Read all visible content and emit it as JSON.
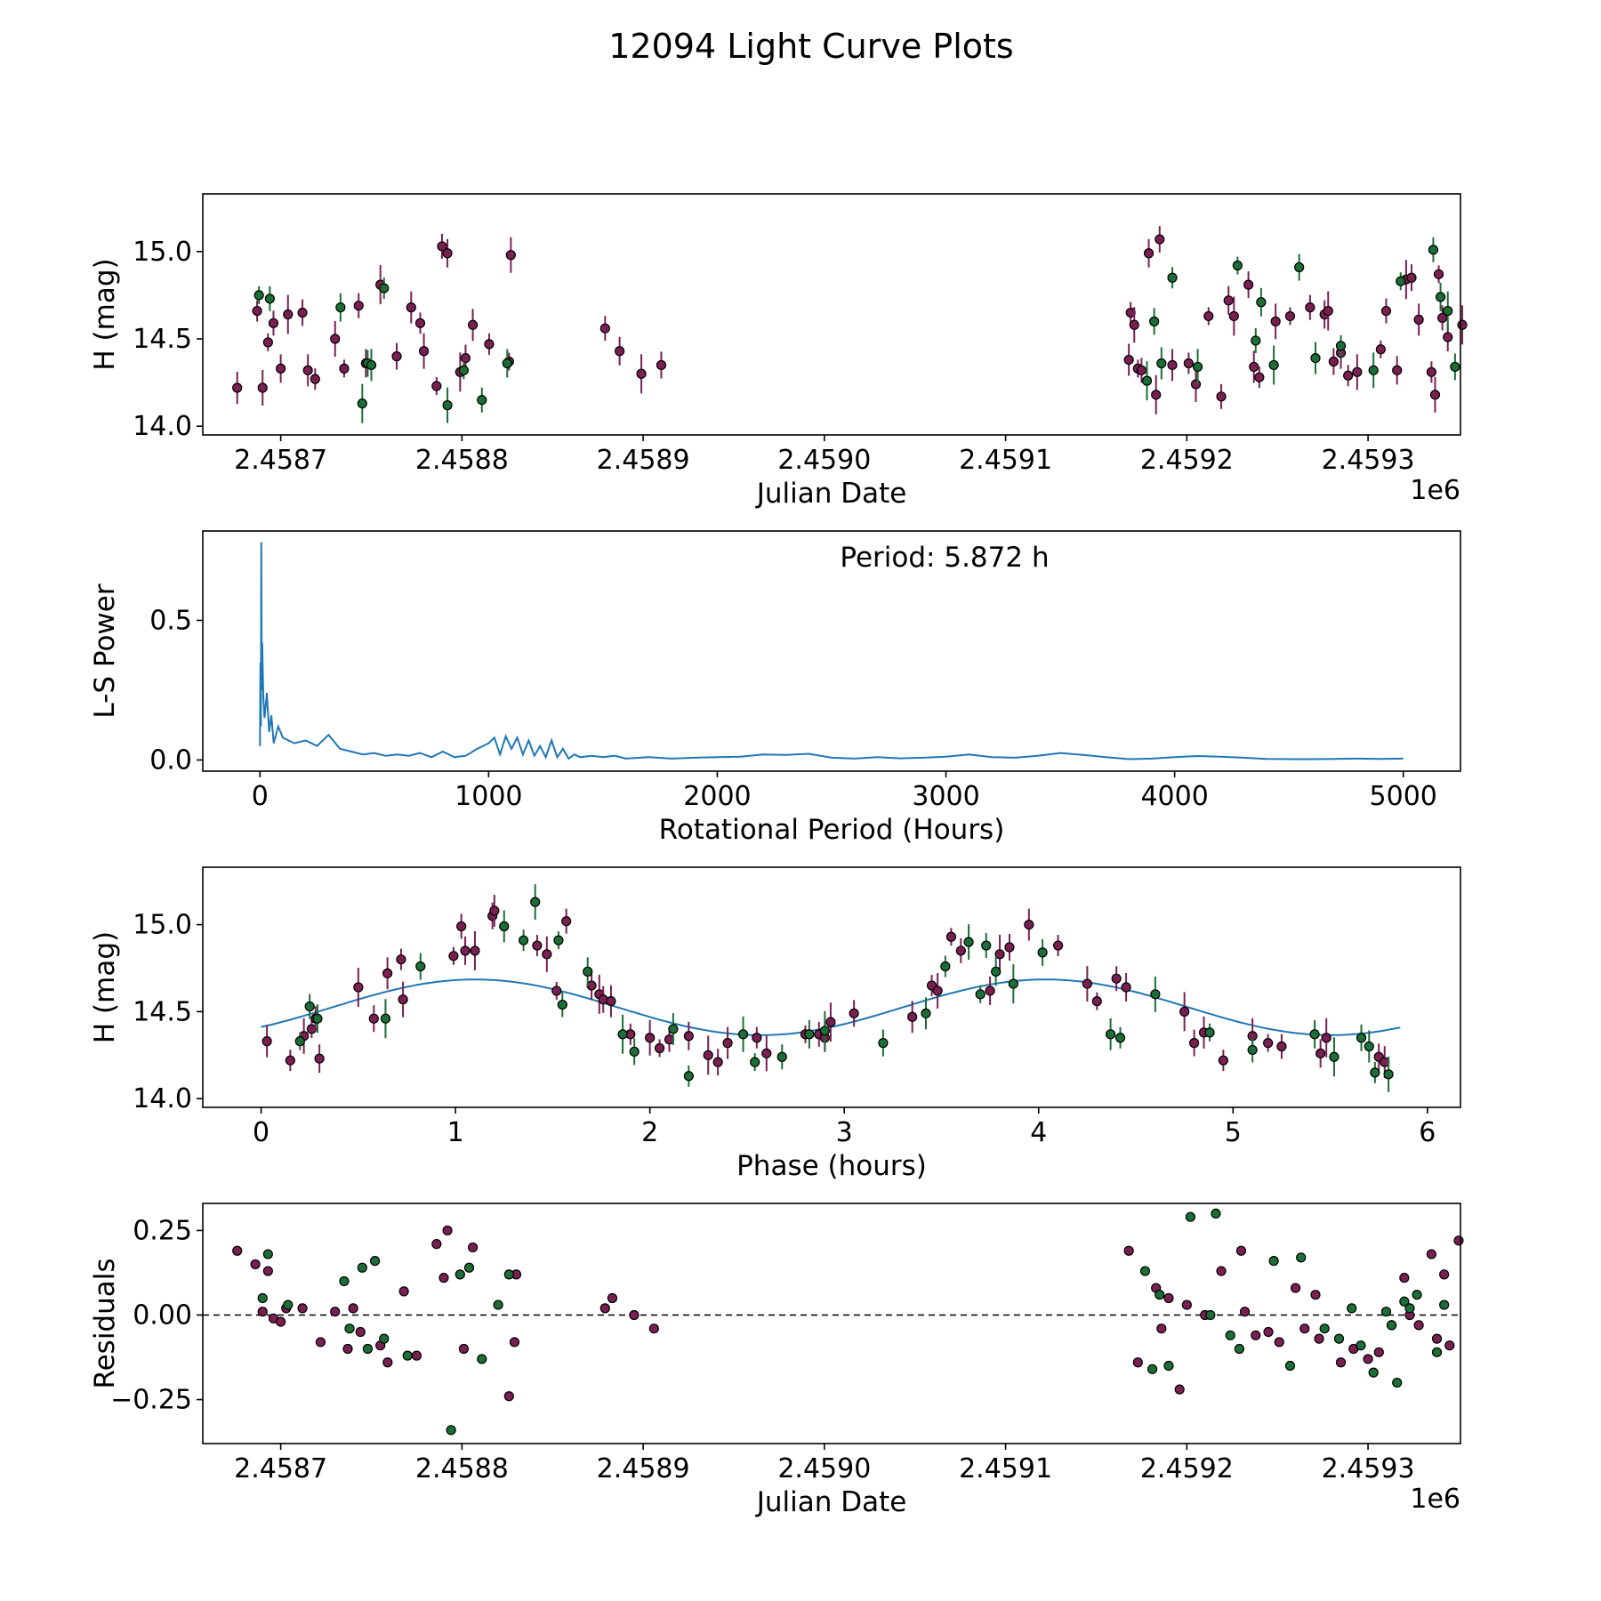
{
  "title": "12094 Light Curve Plots",
  "colors": {
    "filter_a": "#7b1f52",
    "filter_b": "#1b6e35",
    "periodogram": "#1f77b4",
    "fit": "#1f77b4"
  },
  "chart_data": [
    {
      "type": "scatter",
      "name": "light-curve",
      "xlabel": "Julian Date",
      "ylabel": "H (mag)",
      "x_offset_text": "1e6",
      "xlim": [
        2458657,
        2459351
      ],
      "ylim": [
        13.95,
        15.33
      ],
      "xticks": [
        2458700,
        2458800,
        2458900,
        2459000,
        2459100,
        2459200,
        2459300
      ],
      "xtick_labels": [
        "2.4587",
        "2.4588",
        "2.4589",
        "2.4590",
        "2.4591",
        "2.4592",
        "2.4593"
      ],
      "yticks": [
        14.0,
        14.5,
        15.0
      ],
      "ytick_labels": [
        "14.0",
        "14.5",
        "15.0"
      ],
      "series": [
        {
          "name": "filter A",
          "color": "#7b1f52",
          "x": [
            2458676,
            2458687,
            2458690,
            2458693,
            2458696,
            2458700,
            2458704,
            2458712,
            2458715,
            2458719,
            2458730,
            2458735,
            2458743,
            2458747,
            2458755,
            2458764,
            2458772,
            2458777,
            2458779,
            2458786,
            2458789,
            2458792,
            2458799,
            2458802,
            2458806,
            2458815,
            2458827,
            2458826,
            2458879,
            2458887,
            2458899,
            2458910,
            2459168,
            2459169,
            2459171,
            2459173,
            2459175,
            2459179,
            2459183,
            2459185,
            2459192,
            2459201,
            2459205,
            2459212,
            2459219,
            2459223,
            2459226,
            2459234,
            2459237,
            2459240,
            2459249,
            2459257,
            2459268,
            2459276,
            2459278,
            2459281,
            2459285,
            2459289,
            2459294,
            2459307,
            2459310,
            2459316,
            2459321,
            2459324,
            2459328,
            2459335,
            2459337,
            2459339,
            2459341,
            2459344,
            2459352
          ],
          "y": [
            14.22,
            14.66,
            14.22,
            14.48,
            14.59,
            14.33,
            14.64,
            14.65,
            14.32,
            14.27,
            14.5,
            14.33,
            14.69,
            14.36,
            14.81,
            14.4,
            14.68,
            14.59,
            14.43,
            14.23,
            15.03,
            14.99,
            14.31,
            14.39,
            14.58,
            14.47,
            14.98,
            14.37,
            14.56,
            14.43,
            14.3,
            14.35,
            14.38,
            14.65,
            14.58,
            14.33,
            14.32,
            14.99,
            14.18,
            15.07,
            14.35,
            14.36,
            14.24,
            14.63,
            14.17,
            14.72,
            14.63,
            14.81,
            14.34,
            14.28,
            14.6,
            14.63,
            14.68,
            14.64,
            14.66,
            14.37,
            14.42,
            14.29,
            14.31,
            14.44,
            14.66,
            14.32,
            14.84,
            14.85,
            14.61,
            14.31,
            14.18,
            14.87,
            14.62,
            14.51,
            14.58
          ]
        },
        {
          "name": "filter B",
          "color": "#1b6e35",
          "x": [
            2458688,
            2458694,
            2458733,
            2458745,
            2458748,
            2458750,
            2458757,
            2458792,
            2458801,
            2458811,
            2458825,
            2459178,
            2459182,
            2459186,
            2459192,
            2459206,
            2459228,
            2459238,
            2459241,
            2459248,
            2459262,
            2459271,
            2459285,
            2459303,
            2459318,
            2459336,
            2459340,
            2459344,
            2459348
          ],
          "y": [
            14.75,
            14.73,
            14.68,
            14.13,
            14.36,
            14.35,
            14.79,
            14.12,
            14.32,
            14.15,
            14.36,
            14.26,
            14.6,
            14.36,
            14.85,
            14.34,
            14.92,
            14.49,
            14.71,
            14.35,
            14.91,
            14.39,
            14.46,
            14.32,
            14.83,
            15.01,
            14.74,
            14.66,
            14.34
          ]
        }
      ]
    },
    {
      "type": "line",
      "name": "periodogram",
      "xlabel": "Rotational Period (Hours)",
      "ylabel": "L-S Power",
      "annotation": "Period: 5.872 h",
      "peak": {
        "x": 5.872,
        "y": 0.78
      },
      "xlim": [
        -250,
        5250
      ],
      "ylim": [
        -0.04,
        0.82
      ],
      "xticks": [
        0,
        1000,
        2000,
        3000,
        4000,
        5000
      ],
      "xtick_labels": [
        "0",
        "1000",
        "2000",
        "3000",
        "4000",
        "5000"
      ],
      "yticks": [
        0.0,
        0.5
      ],
      "ytick_labels": [
        "0.0",
        "0.5"
      ],
      "series": [
        {
          "name": "L-S power",
          "x": [
            0,
            2,
            4,
            6,
            8,
            10,
            15,
            20,
            30,
            40,
            50,
            60,
            80,
            100,
            150,
            200,
            250,
            300,
            350,
            400,
            450,
            500,
            550,
            600,
            650,
            700,
            750,
            800,
            850,
            900,
            950,
            1000,
            1025,
            1050,
            1075,
            1100,
            1125,
            1150,
            1175,
            1200,
            1225,
            1250,
            1275,
            1300,
            1325,
            1350,
            1375,
            1400,
            1450,
            1500,
            1550,
            1600,
            1700,
            1800,
            1900,
            2000,
            2100,
            2200,
            2300,
            2400,
            2500,
            2600,
            2700,
            2800,
            2900,
            3000,
            3100,
            3200,
            3300,
            3400,
            3500,
            3600,
            3700,
            3800,
            3900,
            4000,
            4100,
            4200,
            4300,
            4400,
            4500,
            4600,
            4700,
            4800,
            4900,
            5000
          ],
          "y": [
            0.05,
            0.35,
            0.12,
            0.78,
            0.25,
            0.42,
            0.22,
            0.15,
            0.24,
            0.1,
            0.16,
            0.06,
            0.12,
            0.08,
            0.06,
            0.07,
            0.05,
            0.09,
            0.04,
            0.03,
            0.02,
            0.025,
            0.015,
            0.02,
            0.015,
            0.025,
            0.01,
            0.03,
            0.01,
            0.015,
            0.04,
            0.06,
            0.08,
            0.02,
            0.085,
            0.04,
            0.08,
            0.02,
            0.07,
            0.015,
            0.05,
            0.01,
            0.07,
            0.01,
            0.04,
            0.005,
            0.02,
            0.01,
            0.015,
            0.01,
            0.015,
            0.005,
            0.01,
            0.005,
            0.008,
            0.01,
            0.012,
            0.02,
            0.018,
            0.022,
            0.008,
            0.005,
            0.01,
            0.006,
            0.008,
            0.012,
            0.02,
            0.01,
            0.008,
            0.015,
            0.025,
            0.018,
            0.01,
            0.003,
            0.005,
            0.01,
            0.014,
            0.012,
            0.008,
            0.004,
            0.003,
            0.003,
            0.004,
            0.005,
            0.004,
            0.005
          ]
        }
      ]
    },
    {
      "type": "scatter",
      "name": "phased-light-curve",
      "xlabel": "Phase (hours)",
      "ylabel": "H (mag)",
      "xlim": [
        -0.3,
        6.17
      ],
      "ylim": [
        13.95,
        15.33
      ],
      "xticks": [
        0,
        1,
        2,
        3,
        4,
        5,
        6
      ],
      "xtick_labels": [
        "0",
        "1",
        "2",
        "3",
        "4",
        "5",
        "6"
      ],
      "yticks": [
        14.0,
        14.5,
        15.0
      ],
      "ytick_labels": [
        "14.0",
        "14.5",
        "15.0"
      ],
      "fit": {
        "mean": 14.525,
        "amplitude": 0.32,
        "period_hours": 2.936,
        "peak_phase": 1.1,
        "range": [
          0,
          5.872
        ]
      },
      "series": [
        {
          "name": "filter A",
          "color": "#7b1f52",
          "x": [
            0.03,
            0.15,
            0.22,
            0.26,
            0.28,
            0.3,
            0.5,
            0.58,
            0.65,
            0.72,
            0.73,
            0.99,
            1.03,
            1.05,
            1.1,
            1.19,
            1.2,
            1.42,
            1.47,
            1.52,
            1.57,
            1.7,
            1.74,
            1.76,
            1.8,
            1.9,
            2.0,
            2.05,
            2.1,
            2.2,
            2.3,
            2.35,
            2.4,
            2.55,
            2.6,
            2.8,
            2.87,
            2.9,
            2.93,
            3.05,
            3.35,
            3.45,
            3.48,
            3.55,
            3.6,
            3.75,
            3.8,
            3.85,
            3.95,
            4.1,
            4.25,
            4.3,
            4.4,
            4.45,
            4.75,
            4.8,
            4.85,
            4.95,
            5.1,
            5.18,
            5.25,
            5.45,
            5.48,
            5.75,
            5.78
          ],
          "y": [
            14.33,
            14.22,
            14.36,
            14.4,
            14.46,
            14.23,
            14.64,
            14.46,
            14.72,
            14.8,
            14.57,
            14.82,
            14.99,
            14.85,
            14.85,
            15.05,
            15.08,
            14.88,
            14.83,
            14.62,
            15.02,
            14.65,
            14.6,
            14.57,
            14.56,
            14.37,
            14.35,
            14.29,
            14.34,
            14.36,
            14.25,
            14.21,
            14.32,
            14.35,
            14.26,
            14.37,
            14.37,
            14.35,
            14.44,
            14.49,
            14.47,
            14.65,
            14.62,
            14.93,
            14.85,
            14.62,
            14.83,
            14.87,
            15.0,
            14.88,
            14.66,
            14.56,
            14.69,
            14.64,
            14.5,
            14.32,
            14.38,
            14.22,
            14.36,
            14.32,
            14.3,
            14.26,
            14.35,
            14.24,
            14.21
          ]
        },
        {
          "name": "filter B",
          "color": "#1b6e35",
          "x": [
            0.2,
            0.25,
            0.29,
            0.64,
            0.82,
            1.25,
            1.35,
            1.41,
            1.53,
            1.55,
            1.68,
            1.86,
            1.92,
            2.12,
            2.2,
            2.48,
            2.54,
            2.68,
            2.82,
            2.9,
            3.2,
            3.42,
            3.52,
            3.64,
            3.7,
            3.73,
            3.78,
            3.87,
            4.02,
            4.37,
            4.42,
            4.6,
            4.88,
            5.1,
            5.42,
            5.52,
            5.66,
            5.7,
            5.73,
            5.8
          ],
          "y": [
            14.33,
            14.53,
            14.46,
            14.46,
            14.76,
            14.99,
            14.91,
            15.13,
            14.91,
            14.54,
            14.73,
            14.37,
            14.27,
            14.4,
            14.13,
            14.37,
            14.21,
            14.24,
            14.37,
            14.39,
            14.32,
            14.49,
            14.76,
            14.9,
            14.6,
            14.88,
            14.73,
            14.66,
            14.84,
            14.37,
            14.35,
            14.6,
            14.38,
            14.28,
            14.37,
            14.24,
            14.35,
            14.3,
            14.15,
            14.14
          ]
        }
      ]
    },
    {
      "type": "scatter",
      "name": "residuals",
      "xlabel": "Julian Date",
      "ylabel": "Residuals",
      "x_offset_text": "1e6",
      "xlim": [
        2458657,
        2459351
      ],
      "ylim": [
        -0.38,
        0.33
      ],
      "xticks": [
        2458700,
        2458800,
        2458900,
        2459000,
        2459100,
        2459200,
        2459300
      ],
      "xtick_labels": [
        "2.4587",
        "2.4588",
        "2.4589",
        "2.4590",
        "2.4591",
        "2.4592",
        "2.4593"
      ],
      "yticks": [
        -0.25,
        0.0,
        0.25
      ],
      "ytick_labels": [
        "−0.25",
        "0.00",
        "0.25"
      ],
      "reference_line": 0,
      "series": [
        {
          "name": "filter A",
          "color": "#7b1f52",
          "x": [
            2458676,
            2458686,
            2458690,
            2458693,
            2458696,
            2458700,
            2458703,
            2458712,
            2458722,
            2458730,
            2458737,
            2458740,
            2458744,
            2458755,
            2458759,
            2458768,
            2458775,
            2458786,
            2458790,
            2458792,
            2458801,
            2458806,
            2458826,
            2458829,
            2458830,
            2458879,
            2458883,
            2458895,
            2458906,
            2459168,
            2459173,
            2459183,
            2459186,
            2459190,
            2459196,
            2459200,
            2459210,
            2459219,
            2459230,
            2459232,
            2459238,
            2459245,
            2459251,
            2459260,
            2459265,
            2459271,
            2459273,
            2459285,
            2459292,
            2459300,
            2459306,
            2459313,
            2459320,
            2459323,
            2459328,
            2459335,
            2459338,
            2459342,
            2459345,
            2459350
          ],
          "y": [
            0.19,
            0.15,
            0.01,
            0.13,
            -0.01,
            -0.02,
            0.02,
            0.02,
            -0.08,
            0.01,
            -0.1,
            0.02,
            -0.05,
            -0.09,
            -0.14,
            0.07,
            -0.12,
            0.21,
            0.11,
            0.25,
            -0.1,
            0.2,
            -0.24,
            -0.08,
            0.12,
            0.02,
            0.05,
            0.0,
            -0.04,
            0.19,
            -0.14,
            0.08,
            -0.04,
            0.05,
            -0.22,
            0.03,
            0.0,
            0.13,
            0.19,
            0.01,
            -0.06,
            -0.05,
            -0.08,
            0.08,
            -0.04,
            0.06,
            -0.07,
            -0.14,
            -0.1,
            -0.13,
            -0.11,
            -0.03,
            0.11,
            0.0,
            -0.03,
            0.18,
            -0.07,
            0.12,
            -0.09,
            0.22
          ]
        },
        {
          "name": "filter B",
          "color": "#1b6e35",
          "x": [
            2458690,
            2458693,
            2458704,
            2458735,
            2458738,
            2458745,
            2458748,
            2458752,
            2458757,
            2458770,
            2458794,
            2458799,
            2458804,
            2458811,
            2458820,
            2458826,
            2459177,
            2459181,
            2459185,
            2459190,
            2459202,
            2459213,
            2459216,
            2459224,
            2459229,
            2459248,
            2459257,
            2459263,
            2459276,
            2459284,
            2459291,
            2459296,
            2459303,
            2459310,
            2459313,
            2459316,
            2459320,
            2459323,
            2459327,
            2459338,
            2459342
          ],
          "y": [
            0.05,
            0.18,
            0.03,
            0.1,
            -0.04,
            0.14,
            -0.1,
            0.16,
            -0.07,
            -0.12,
            -0.34,
            0.12,
            0.14,
            -0.13,
            0.03,
            0.12,
            0.13,
            -0.16,
            0.06,
            -0.15,
            0.29,
            0.0,
            0.3,
            -0.06,
            -0.1,
            0.16,
            -0.15,
            0.17,
            -0.04,
            -0.07,
            0.02,
            -0.09,
            -0.17,
            0.01,
            -0.03,
            -0.2,
            0.04,
            0.02,
            0.06,
            -0.11,
            0.03
          ]
        }
      ]
    }
  ]
}
